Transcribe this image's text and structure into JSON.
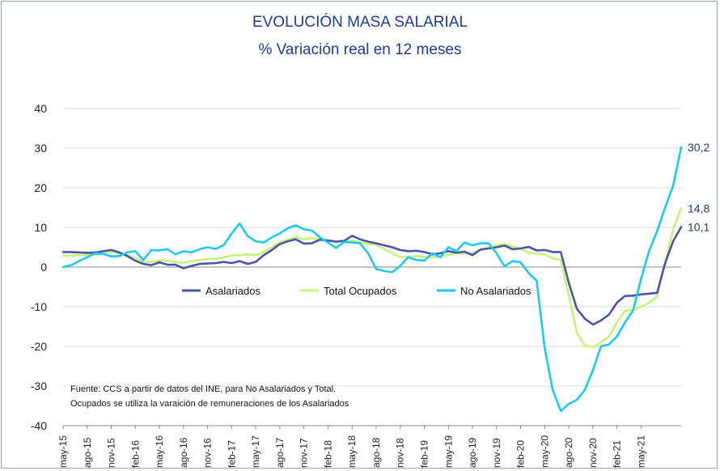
{
  "chart_data": {
    "type": "line",
    "title": "EVOLUCIÓN MASA SALARIAL",
    "subtitle": "% Variación real en 12 meses",
    "ylim": [
      -40,
      40
    ],
    "yticks": [
      "40",
      "30",
      "20",
      "10",
      "0",
      "-10",
      "-20",
      "-30",
      "-40"
    ],
    "xlabels": [
      "may-15",
      "ago-15",
      "nov-15",
      "feb-16",
      "may-16",
      "ago-16",
      "nov-16",
      "feb-17",
      "may-17",
      "ago-17",
      "nov-17",
      "feb-18",
      "may-18",
      "ago-18",
      "nov-18",
      "feb-19",
      "may-19",
      "ago-19",
      "nov-19",
      "feb-20",
      "may-20",
      "ago-20",
      "nov-20",
      "feb-21",
      "may-21"
    ],
    "grid": "horizontal",
    "legend_position": "center",
    "series": [
      {
        "name": "Asalariados",
        "color": "#4a55a8",
        "end_label": "10,1",
        "values": [
          3.8,
          3.8,
          3.7,
          3.6,
          3.7,
          4.0,
          4.3,
          3.7,
          2.8,
          1.6,
          0.8,
          0.5,
          1.2,
          0.6,
          0.6,
          -0.3,
          0.3,
          0.8,
          0.9,
          1.0,
          1.3,
          1.0,
          1.5,
          0.8,
          1.3,
          3.0,
          4.3,
          5.8,
          6.5,
          7.0,
          5.9,
          6.0,
          6.9,
          6.7,
          6.4,
          6.6,
          7.9,
          7.0,
          6.4,
          6.0,
          5.5,
          5.0,
          4.3,
          4.0,
          4.1,
          3.8,
          3.2,
          3.5,
          4.0,
          3.6,
          3.9,
          3.0,
          4.4,
          4.7,
          5.0,
          5.4,
          4.5,
          4.7,
          5.1,
          4.2,
          4.3,
          3.8,
          3.8,
          -4.0,
          -10.5,
          -13.0,
          -14.5,
          -13.5,
          -12.0,
          -9.0,
          -7.3,
          -7.2,
          -6.9,
          -6.7,
          -6.5,
          1.0,
          6.5,
          10.1
        ]
      },
      {
        "name": "Total Ocupados",
        "color": "#c6f47a",
        "end_label": "14,8",
        "values": [
          2.8,
          2.9,
          3.0,
          3.1,
          3.2,
          3.5,
          3.8,
          3.4,
          3.0,
          2.3,
          1.3,
          1.3,
          1.7,
          1.6,
          1.3,
          1.0,
          1.5,
          1.8,
          2.0,
          2.1,
          2.5,
          2.9,
          3.0,
          3.2,
          3.0,
          3.8,
          5.0,
          6.2,
          7.0,
          7.6,
          7.0,
          7.3,
          7.0,
          6.8,
          6.5,
          6.5,
          6.8,
          6.2,
          5.8,
          5.7,
          4.5,
          3.5,
          2.5,
          2.6,
          2.8,
          2.6,
          2.5,
          2.7,
          3.1,
          3.5,
          3.4,
          3.6,
          4.3,
          5.0,
          5.5,
          5.8,
          5.2,
          4.7,
          3.6,
          3.4,
          3.2,
          2.2,
          1.8,
          -7.0,
          -16.5,
          -19.8,
          -20.2,
          -19.0,
          -17.5,
          -14.0,
          -11.0,
          -10.8,
          -10.0,
          -9.0,
          -7.5,
          1.0,
          9.5,
          14.8
        ]
      },
      {
        "name": "No Asalariados",
        "color": "#1ec8f2",
        "end_label": "30,2",
        "values": [
          0.0,
          0.5,
          1.5,
          2.5,
          3.5,
          3.3,
          2.7,
          2.8,
          3.7,
          4.0,
          1.8,
          4.3,
          4.2,
          4.5,
          3.2,
          4.0,
          3.7,
          4.5,
          5.0,
          4.6,
          5.5,
          8.5,
          11.0,
          7.8,
          6.5,
          6.2,
          7.5,
          8.5,
          9.8,
          10.5,
          9.5,
          9.2,
          7.5,
          6.2,
          4.8,
          6.3,
          6.2,
          6.0,
          3.5,
          -0.5,
          -1.0,
          -1.3,
          0.3,
          2.5,
          1.8,
          1.6,
          3.5,
          2.5,
          5.0,
          4.0,
          6.2,
          5.5,
          6.0,
          6.0,
          3.5,
          0.2,
          1.5,
          1.2,
          -1.5,
          -3.5,
          -20.5,
          -31.0,
          -36.3,
          -34.5,
          -33.5,
          -31.0,
          -26.0,
          -20.0,
          -19.5,
          -17.5,
          -14.0,
          -11.0,
          -3.0,
          4.0,
          9.0,
          15.0,
          20.5,
          30.2
        ]
      }
    ],
    "note_lines": [
      "Fuente: CCS a partir de datos del INE, para No Asalariados y Total.",
      "Ocupados se utiliza la varaición de remuneraciones de los Asalariados"
    ]
  }
}
